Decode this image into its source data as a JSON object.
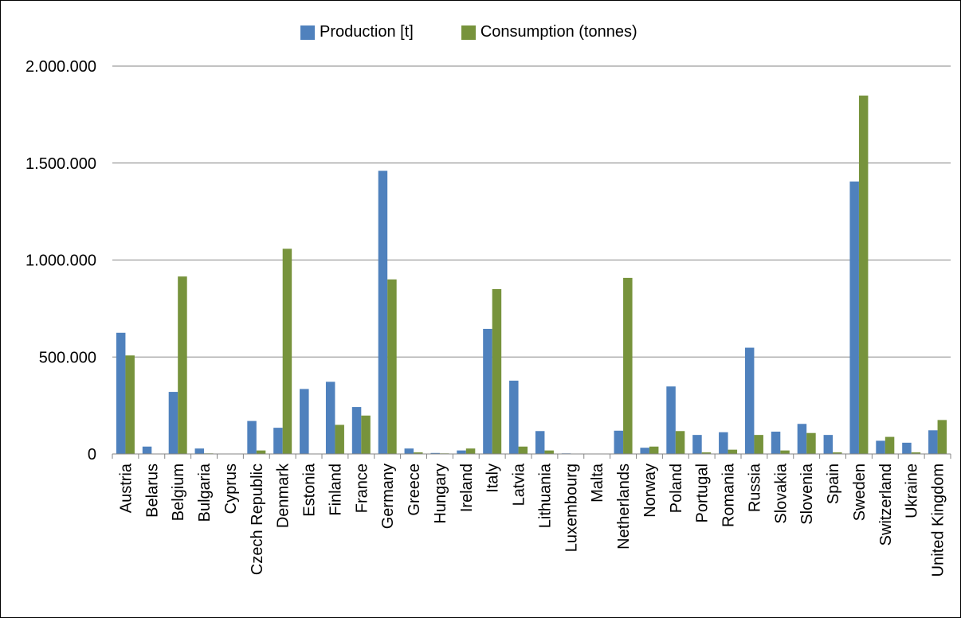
{
  "chart_data": {
    "type": "bar",
    "title": "",
    "xlabel": "",
    "ylabel": "",
    "ylim": [
      0,
      2000000
    ],
    "yticks": [
      0,
      500000,
      1000000,
      1500000,
      2000000
    ],
    "ytick_labels": [
      "0",
      "500.000",
      "1.000.000",
      "1.500.000",
      "2.000.000"
    ],
    "grid": true,
    "legend_position": "top",
    "categories": [
      "Austria",
      "Belarus",
      "Belgium",
      "Bulgaria",
      "Cyprus",
      "Czech Republic",
      "Denmark",
      "Estonia",
      "Finland",
      "France",
      "Germany",
      "Greece",
      "Hungary",
      "Ireland",
      "Italy",
      "Latvia",
      "Lithuania",
      "Luxembourg",
      "Malta",
      "Netherlands",
      "Norway",
      "Poland",
      "Portugal",
      "Romania",
      "Russia",
      "Slovakia",
      "Slovenia",
      "Spain",
      "Sweden",
      "Switzerland",
      "Ukraine",
      "United Kingdom"
    ],
    "series": [
      {
        "name": "Production [t]",
        "color": "#4F81BD",
        "values": [
          625000,
          38000,
          320000,
          28000,
          0,
          170000,
          135000,
          335000,
          372000,
          242000,
          1460000,
          28000,
          5000,
          18000,
          645000,
          378000,
          118000,
          3000,
          0,
          120000,
          32000,
          348000,
          98000,
          112000,
          548000,
          115000,
          155000,
          98000,
          1405000,
          68000,
          58000,
          122000
        ]
      },
      {
        "name": "Consumption (tonnes)",
        "color": "#77933C",
        "values": [
          508000,
          0,
          915000,
          3000,
          0,
          18000,
          1058000,
          0,
          150000,
          198000,
          900000,
          8000,
          3000,
          28000,
          850000,
          38000,
          18000,
          0,
          0,
          908000,
          38000,
          118000,
          8000,
          22000,
          98000,
          18000,
          108000,
          8000,
          1848000,
          88000,
          8000,
          175000
        ]
      }
    ]
  }
}
